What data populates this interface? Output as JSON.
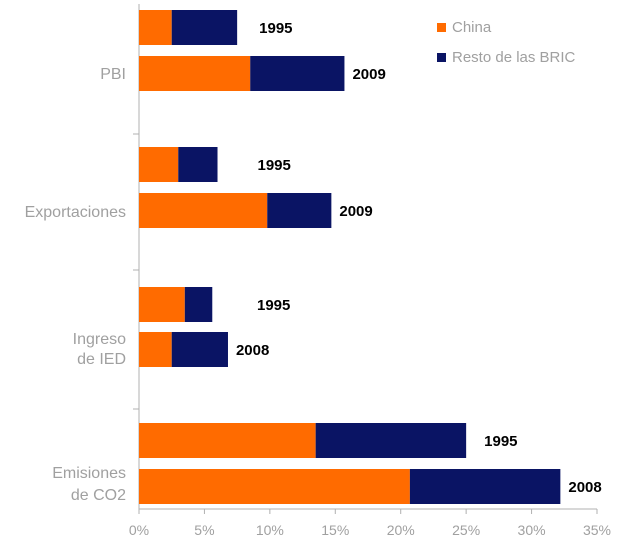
{
  "chart_data": {
    "type": "bar",
    "orientation": "horizontal",
    "stacked": true,
    "title": "",
    "xlabel": "",
    "ylabel": "",
    "xlim": [
      0,
      35
    ],
    "x_ticks": [
      "0%",
      "5%",
      "10%",
      "15%",
      "20%",
      "25%",
      "30%",
      "35%"
    ],
    "legend": {
      "placement": "top-right",
      "entries": [
        {
          "name": "China",
          "color": "#ff6b00"
        },
        {
          "name": "Resto de las BRIC",
          "color": "#0a1464"
        }
      ]
    },
    "groups": [
      {
        "label_lines": [
          "PBI"
        ],
        "bars": [
          {
            "year": "1995",
            "china": 2.5,
            "resto": 5.0
          },
          {
            "year": "2009",
            "china": 8.5,
            "resto": 7.2
          }
        ]
      },
      {
        "label_lines": [
          "Exportaciones"
        ],
        "bars": [
          {
            "year": "1995",
            "china": 3.0,
            "resto": 3.0
          },
          {
            "year": "2009",
            "china": 9.8,
            "resto": 4.9
          }
        ]
      },
      {
        "label_lines": [
          "Ingreso",
          "de IED"
        ],
        "bars": [
          {
            "year": "1995",
            "china": 3.5,
            "resto": 2.1
          },
          {
            "year": "2008",
            "china": 2.5,
            "resto": 4.3
          }
        ]
      },
      {
        "label_lines": [
          "Emisiones",
          "de CO2"
        ],
        "bars": [
          {
            "year": "1995",
            "china": 13.5,
            "resto": 11.5
          },
          {
            "year": "2008",
            "china": 20.7,
            "resto": 11.5
          }
        ]
      }
    ]
  }
}
